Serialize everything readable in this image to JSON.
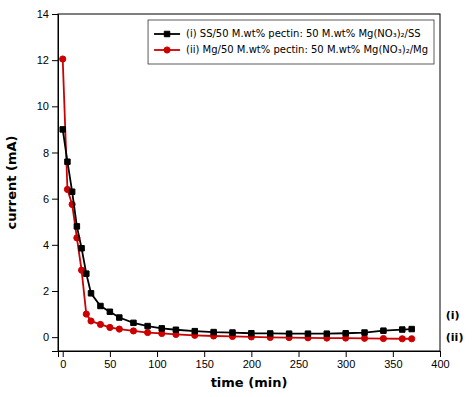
{
  "chart_data": {
    "type": "line",
    "xlabel": "time (min)",
    "ylabel": "current (mA)",
    "xlim": [
      -5,
      400
    ],
    "ylim": [
      -0.6,
      14
    ],
    "xticks": [
      0,
      50,
      100,
      150,
      200,
      250,
      300,
      350,
      400
    ],
    "yticks": [
      0,
      2,
      4,
      6,
      8,
      10,
      12,
      14
    ],
    "grid": false,
    "legend": "upper right",
    "annotations": [
      "(i)",
      "(ii)"
    ],
    "series": [
      {
        "name": "(i) SS/50 M.wt% pectin: 50 M.wt% Mg(NO₃)₂/SS",
        "color": "#000000",
        "marker": "square",
        "x": [
          0,
          5,
          10,
          15,
          20,
          25,
          30,
          40,
          50,
          60,
          75,
          90,
          105,
          120,
          140,
          160,
          180,
          200,
          220,
          240,
          260,
          280,
          300,
          320,
          340,
          360,
          370
        ],
        "values": [
          9.0,
          7.6,
          6.3,
          4.8,
          3.85,
          2.75,
          1.9,
          1.35,
          1.1,
          0.85,
          0.62,
          0.48,
          0.38,
          0.32,
          0.26,
          0.22,
          0.2,
          0.17,
          0.16,
          0.15,
          0.15,
          0.15,
          0.17,
          0.2,
          0.28,
          0.33,
          0.35
        ]
      },
      {
        "name": "(ii) Mg/50 M.wt% pectin: 50 M.wt% Mg(NO₃)₂/Mg",
        "color": "#cc0000",
        "marker": "circle",
        "x": [
          0,
          5,
          10,
          15,
          20,
          25,
          30,
          40,
          50,
          60,
          75,
          90,
          105,
          120,
          140,
          160,
          180,
          200,
          220,
          240,
          260,
          280,
          300,
          320,
          340,
          360,
          370
        ],
        "values": [
          12.05,
          6.4,
          5.75,
          4.3,
          2.9,
          1.0,
          0.7,
          0.55,
          0.42,
          0.35,
          0.27,
          0.2,
          0.16,
          0.12,
          0.08,
          0.05,
          0.03,
          0.01,
          -0.01,
          -0.02,
          -0.03,
          -0.04,
          -0.04,
          -0.05,
          -0.06,
          -0.07,
          -0.07
        ]
      }
    ]
  }
}
